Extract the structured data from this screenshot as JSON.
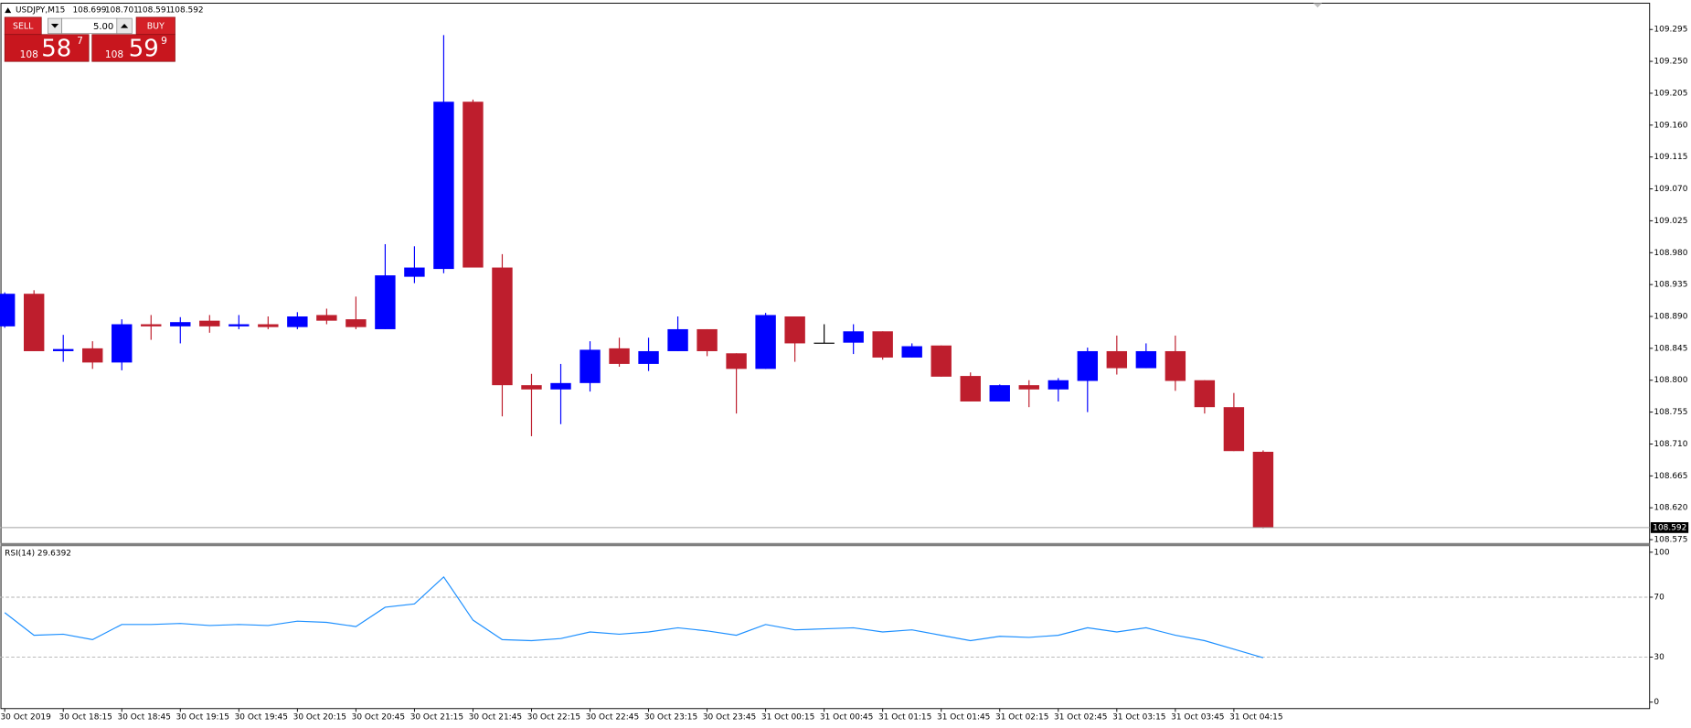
{
  "chart_data": [
    {
      "type": "candlestick",
      "symbol": "USDJPY,M15",
      "header_values": [
        108.699,
        108.701,
        108.591,
        108.592
      ],
      "categories": [
        "30 Oct 2019",
        null,
        "30 Oct 18:15",
        null,
        "30 Oct 18:45",
        null,
        "30 Oct 19:15",
        null,
        "30 Oct 19:45",
        null,
        "30 Oct 20:15",
        null,
        "30 Oct 20:45",
        null,
        "30 Oct 21:15",
        null,
        "30 Oct 21:45",
        null,
        "30 Oct 22:15",
        null,
        "30 Oct 22:45",
        null,
        "30 Oct 23:15",
        null,
        "30 Oct 23:45",
        null,
        "31 Oct 00:15",
        null,
        "31 Oct 00:45",
        null,
        "31 Oct 01:15",
        null,
        "31 Oct 01:45",
        null,
        "31 Oct 02:15",
        null,
        "31 Oct 02:45",
        null,
        "31 Oct 03:15",
        null,
        "31 Oct 03:45",
        null,
        "31 Oct 04:15",
        null
      ],
      "open": [
        108.876,
        108.922,
        108.841,
        108.845,
        108.825,
        108.879,
        108.876,
        108.884,
        108.876,
        108.879,
        108.875,
        108.892,
        108.886,
        108.872,
        108.946,
        108.957,
        109.193,
        108.959,
        108.793,
        108.787,
        108.796,
        108.845,
        108.823,
        108.841,
        108.872,
        108.838,
        108.816,
        108.89,
        108.853,
        108.853,
        108.869,
        108.832,
        108.849,
        108.806,
        108.77,
        108.793,
        108.787,
        108.799,
        108.841,
        108.817,
        108.841,
        108.8,
        108.762,
        108.699
      ],
      "high": [
        108.924,
        108.927,
        108.864,
        108.855,
        108.886,
        108.892,
        108.889,
        108.892,
        108.892,
        108.89,
        108.896,
        108.901,
        108.918,
        108.992,
        108.989,
        109.287,
        109.196,
        108.978,
        108.809,
        108.823,
        108.855,
        108.86,
        108.86,
        108.89,
        108.872,
        108.838,
        108.895,
        108.89,
        108.879,
        108.879,
        108.869,
        108.852,
        108.849,
        108.811,
        108.794,
        108.8,
        108.803,
        108.846,
        108.863,
        108.852,
        108.863,
        108.8,
        108.782,
        108.701
      ],
      "low": [
        108.874,
        108.841,
        108.826,
        108.816,
        108.814,
        108.857,
        108.852,
        108.867,
        108.872,
        108.872,
        108.872,
        108.879,
        108.872,
        108.872,
        108.937,
        108.951,
        108.959,
        108.749,
        108.721,
        108.738,
        108.784,
        108.819,
        108.813,
        108.841,
        108.834,
        108.753,
        108.816,
        108.826,
        108.852,
        108.837,
        108.829,
        108.832,
        108.805,
        108.77,
        108.77,
        108.762,
        108.77,
        108.755,
        108.808,
        108.817,
        108.785,
        108.753,
        108.7,
        108.591
      ],
      "close": [
        108.922,
        108.841,
        108.844,
        108.825,
        108.879,
        108.876,
        108.882,
        108.876,
        108.879,
        108.875,
        108.89,
        108.884,
        108.875,
        108.948,
        108.959,
        109.193,
        108.959,
        108.793,
        108.787,
        108.796,
        108.843,
        108.823,
        108.841,
        108.872,
        108.841,
        108.816,
        108.892,
        108.852,
        108.853,
        108.869,
        108.832,
        108.848,
        108.805,
        108.77,
        108.793,
        108.787,
        108.8,
        108.841,
        108.817,
        108.841,
        108.799,
        108.762,
        108.7,
        108.592
      ],
      "up_color": "#0000ff",
      "down_color": "#be1e2d",
      "flat_color": "#000000",
      "current_price": 108.592,
      "ylim": [
        108.571,
        109.332
      ],
      "yticks": [
        109.295,
        {
          "value": 109.25,
          "label": "109.250"
        },
        109.205,
        {
          "value": 109.16,
          "label": "109.160"
        },
        109.115,
        {
          "value": 109.07,
          "label": "109.070"
        },
        109.025,
        {
          "value": 108.98,
          "label": "108.980"
        },
        108.935,
        {
          "value": 108.89,
          "label": "108.890"
        },
        108.845,
        {
          "value": 108.8,
          "label": "108.800"
        },
        108.755,
        {
          "value": 108.71,
          "label": "108.710"
        },
        108.665,
        {
          "value": 108.62,
          "label": "108.620"
        },
        108.575
      ]
    },
    {
      "type": "line",
      "label": "RSI(14) 29.6392",
      "color": "#1e90ff",
      "values": [
        59.7,
        44.6,
        45.3,
        41.7,
        51.8,
        51.8,
        52.5,
        51.1,
        51.8,
        51.1,
        54.0,
        53.2,
        50.4,
        63.3,
        65.5,
        83.5,
        54.7,
        41.7,
        41.0,
        42.4,
        46.8,
        45.3,
        46.8,
        49.6,
        47.5,
        44.6,
        51.8,
        48.2,
        48.9,
        49.6,
        46.8,
        48.2,
        44.6,
        41.0,
        43.9,
        43.2,
        44.6,
        49.6,
        46.8,
        49.6,
        44.6,
        41.0,
        35.3,
        29.6392
      ],
      "ylim": [
        -4.3,
        103.6
      ],
      "yticks": [
        100,
        70,
        30,
        0
      ],
      "levels": [
        70,
        30
      ]
    }
  ],
  "trade_panel": {
    "sell": "SELL",
    "buy": "BUY",
    "lot": "5.00",
    "sell_price": [
      "108",
      "58",
      "7"
    ],
    "buy_price": [
      "108",
      "59",
      "9"
    ]
  }
}
